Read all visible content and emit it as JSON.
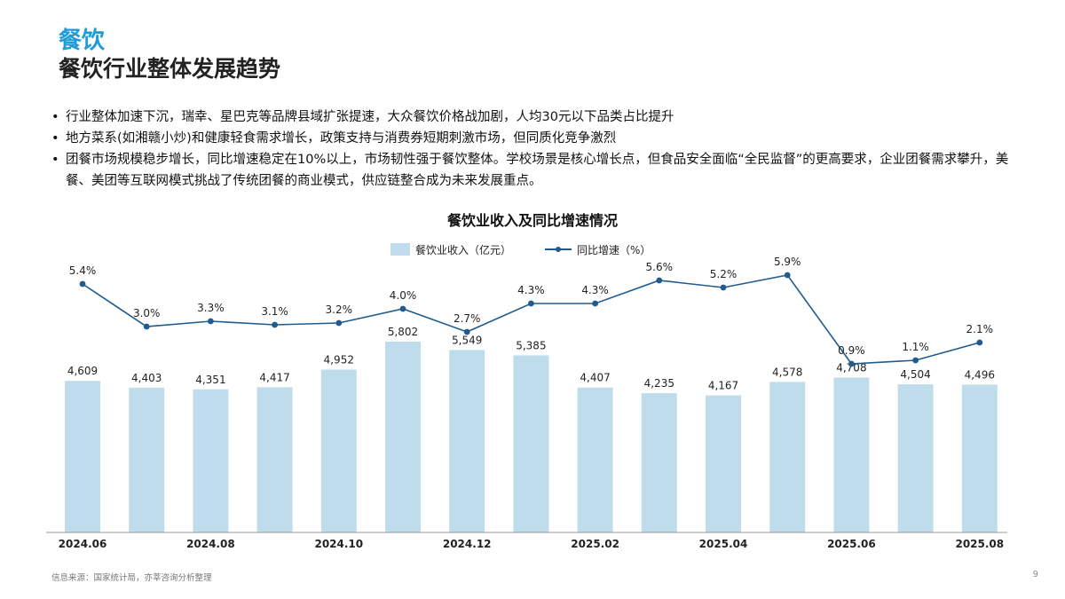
{
  "header": {
    "section": "餐饮",
    "title": "餐饮行业整体发展趋势"
  },
  "bullets": [
    "行业整体加速下沉，瑞幸、星巴克等品牌县域扩张提速，大众餐饮价格战加剧，人均30元以下品类占比提升",
    "地方菜系(如湘赣小炒)和健康轻食需求增长，政策支持与消费券短期刺激市场，但同质化竞争激烈",
    "团餐市场规模稳步增长，同比增速稳定在10%以上，市场韧性强于餐饮整体。学校场景是核心增长点，但食品安全面临“全民监督”的更高要求，企业团餐需求攀升，美餐、美团等互联网模式挑战了传统团餐的商业模式，供应链整合成为未来发展重点。"
  ],
  "chart_data": {
    "type": "bar",
    "title": "餐饮业收入及同比增速情况",
    "categories": [
      "2024.06",
      "2024.07",
      "2024.08",
      "2024.09",
      "2024.10",
      "2024.11",
      "2024.12",
      "2025.01",
      "2025.02",
      "2025.03",
      "2025.04",
      "2025.05",
      "2025.06",
      "2025.07",
      "2025.08"
    ],
    "x_tick_labels": [
      "2024.06",
      "",
      "2024.08",
      "",
      "2024.10",
      "",
      "2024.12",
      "",
      "2025.02",
      "",
      "2025.04",
      "",
      "2025.06",
      "",
      "2025.08"
    ],
    "series": [
      {
        "name": "餐饮业收入（亿元）",
        "type": "bar",
        "color": "#bfdcec",
        "values": [
          4609,
          4403,
          4351,
          4417,
          4952,
          5802,
          5549,
          5385,
          4407,
          4235,
          4167,
          4578,
          4708,
          4504,
          4496
        ],
        "labels": [
          "4,609",
          "4,403",
          "4,351",
          "4,417",
          "4,952",
          "5,802",
          "5,549",
          "5,385",
          "4,407",
          "4,235",
          "4,167",
          "4,578",
          "4,708",
          "4,504",
          "4,496"
        ]
      },
      {
        "name": "同比增速（%）",
        "type": "line",
        "color": "#1f5b8e",
        "values": [
          5.4,
          3.0,
          3.3,
          3.1,
          3.2,
          4.0,
          2.7,
          4.3,
          4.3,
          5.6,
          5.2,
          5.9,
          0.9,
          1.1,
          2.1
        ],
        "labels": [
          "5.4%",
          "3.0%",
          "3.3%",
          "3.1%",
          "3.2%",
          "4.0%",
          "2.7%",
          "4.3%",
          "4.3%",
          "5.6%",
          "5.2%",
          "5.9%",
          "0.9%",
          "1.1%",
          "2.1%"
        ]
      }
    ],
    "legend": "top-center",
    "grid": false
  },
  "footer": {
    "source": "信息来源：国家统计局，亦莘咨询分析整理",
    "page": "9"
  }
}
